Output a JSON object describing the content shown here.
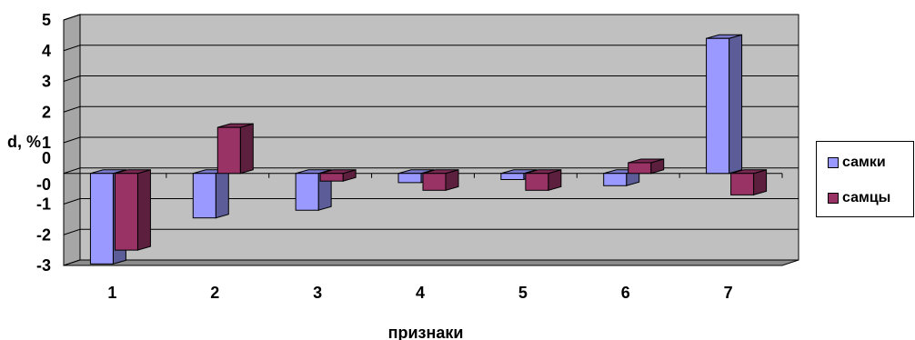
{
  "chart_data": {
    "type": "bar",
    "categories": [
      "1",
      "2",
      "3",
      "4",
      "5",
      "6",
      "7"
    ],
    "series": [
      {
        "name": "самки",
        "values": [
          -2.95,
          -1.45,
          -1.2,
          -0.3,
          -0.2,
          -0.4,
          4.4
        ],
        "color": "#9999ff"
      },
      {
        "name": "самцы",
        "values": [
          -2.5,
          1.5,
          -0.25,
          -0.55,
          -0.55,
          0.35,
          -0.7
        ],
        "color": "#993366"
      }
    ],
    "xlabel": "признаки",
    "ylabel": "d, %",
    "ylim": [
      -3,
      5
    ],
    "yticks": [
      "5",
      "4",
      "3",
      "2",
      "1",
      "0",
      "-0",
      "-1",
      "-2",
      "-3"
    ],
    "plot_background": "#c0c0c0",
    "grid": true,
    "legend_position": "right"
  }
}
